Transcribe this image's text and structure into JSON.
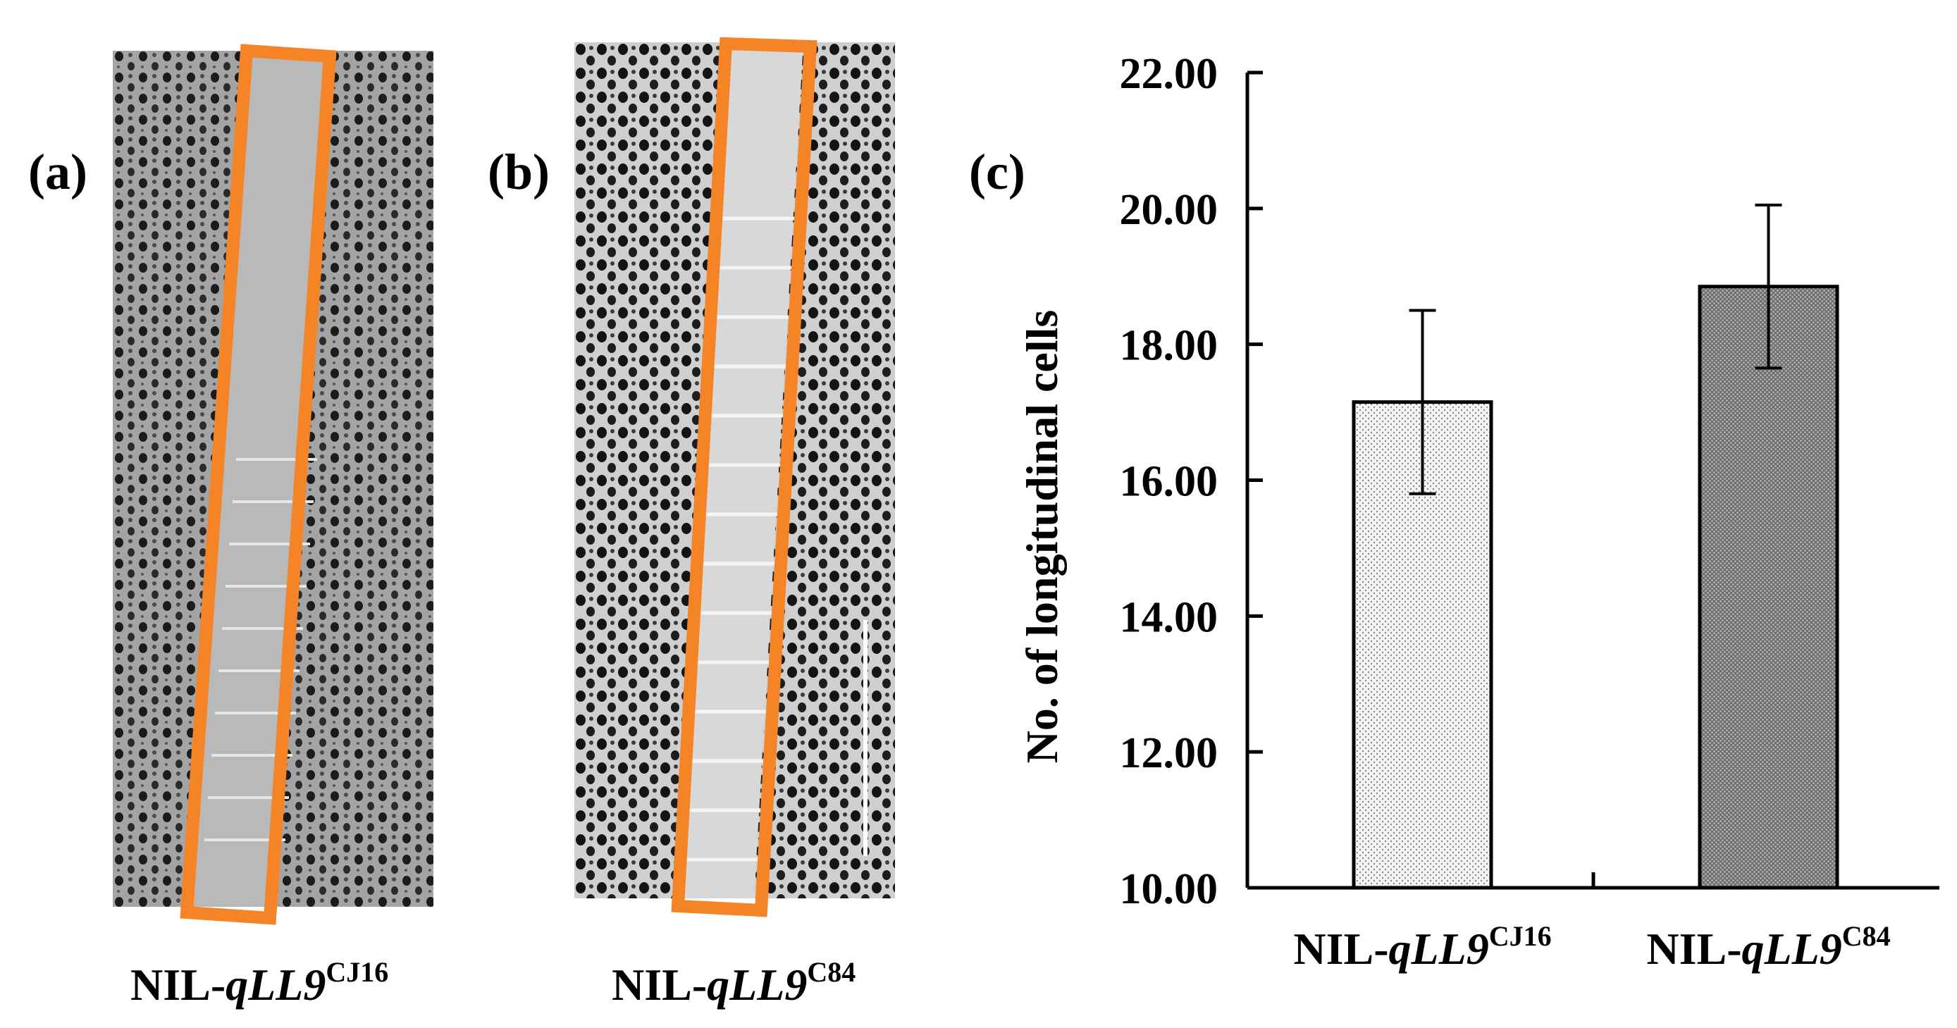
{
  "panels": {
    "a": {
      "letter": "(a)",
      "caption_prefix": "NIL-",
      "caption_italic": "qLL9",
      "caption_sup": "CJ16"
    },
    "b": {
      "letter": "(b)",
      "caption_prefix": "NIL-",
      "caption_italic": "qLL9",
      "caption_sup": "C84"
    },
    "c": {
      "letter": "(c)"
    }
  },
  "colors": {
    "highlight_box": "#f58426",
    "bar1_fill": "#eeeeee",
    "bar2_fill": "#8a8a8a",
    "axis": "#000000"
  },
  "chart_data": {
    "type": "bar",
    "categories": [
      "NIL-qLL9CJ16",
      "NIL-qLL9C84"
    ],
    "category_labels": [
      {
        "prefix": "NIL-",
        "italic": "qLL9",
        "sup": "CJ16"
      },
      {
        "prefix": "NIL-",
        "italic": "qLL9",
        "sup": "C84"
      }
    ],
    "values": [
      17.15,
      18.85
    ],
    "errors": [
      1.35,
      1.2
    ],
    "ylabel": "No. of  longitudinal cells",
    "xlabel": "",
    "ylim": [
      10,
      22
    ],
    "yticks": [
      10,
      12,
      14,
      16,
      18,
      20,
      22
    ],
    "ytick_labels": [
      "10.00",
      "12.00",
      "14.00",
      "16.00",
      "18.00",
      "20.00",
      "22.00"
    ],
    "grid": false,
    "legend": "none"
  }
}
